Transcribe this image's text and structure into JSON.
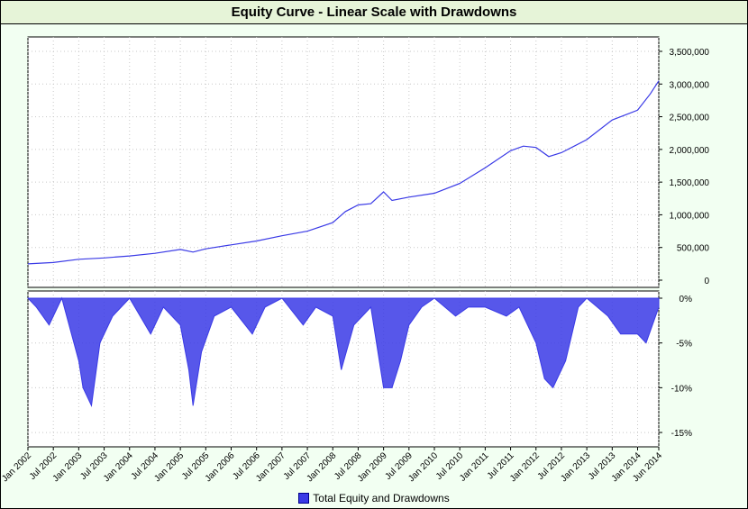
{
  "colors": {
    "series": "#3a3ae6",
    "background": "#f2fff2",
    "plot_background": "#ffffff",
    "title_background": "#e6f4d8",
    "grid": "#c8c8c8"
  },
  "chart_data": [
    {
      "type": "line",
      "title": "Equity Curve - Linear Scale with Drawdowns",
      "ylabel": "",
      "xlabel": "",
      "xlim": [
        "2002-01",
        "2014-06"
      ],
      "ylim": [
        0,
        3500000
      ],
      "grid": true,
      "y_ticks": [
        0,
        500000,
        1000000,
        1500000,
        2000000,
        2500000,
        3000000,
        3500000
      ],
      "y_tick_labels": [
        "0",
        "500,000",
        "1,000,000",
        "1,500,000",
        "2,000,000",
        "2,500,000",
        "3,000,000",
        "3,500,000"
      ],
      "series": [
        {
          "name": "Total Equity",
          "x": [
            "2002-01",
            "2002-07",
            "2003-01",
            "2003-07",
            "2004-01",
            "2004-07",
            "2005-01",
            "2005-04",
            "2005-07",
            "2006-01",
            "2006-07",
            "2007-01",
            "2007-07",
            "2008-01",
            "2008-04",
            "2008-07",
            "2008-10",
            "2009-01",
            "2009-03",
            "2009-07",
            "2010-01",
            "2010-07",
            "2011-01",
            "2011-07",
            "2011-10",
            "2012-01",
            "2012-04",
            "2012-07",
            "2013-01",
            "2013-07",
            "2014-01",
            "2014-04",
            "2014-06"
          ],
          "y": [
            250000,
            270000,
            320000,
            340000,
            370000,
            410000,
            470000,
            430000,
            480000,
            540000,
            600000,
            680000,
            750000,
            880000,
            1050000,
            1150000,
            1170000,
            1350000,
            1220000,
            1270000,
            1330000,
            1480000,
            1720000,
            1980000,
            2050000,
            2030000,
            1890000,
            1950000,
            2150000,
            2450000,
            2600000,
            2850000,
            3050000
          ]
        }
      ]
    },
    {
      "type": "area",
      "ylim": [
        -16,
        0
      ],
      "y_ticks": [
        0,
        -5,
        -10,
        -15
      ],
      "y_tick_labels": [
        "0%",
        "-5%",
        "-10%",
        "-15%"
      ],
      "x_tick_labels": [
        "Jan 2002",
        "Jul 2002",
        "Jan 2003",
        "Jul 2003",
        "Jan 2004",
        "Jul 2004",
        "Jan 2005",
        "Jul 2005",
        "Jan 2006",
        "Jul 2006",
        "Jan 2007",
        "Jul 2007",
        "Jan 2008",
        "Jul 2008",
        "Jan 2009",
        "Jul 2009",
        "Jan 2010",
        "Jul 2010",
        "Jan 2011",
        "Jul 2011",
        "Jan 2012",
        "Jul 2012",
        "Jan 2013",
        "Jul 2013",
        "Jan 2014",
        "Jun 2014"
      ],
      "series": [
        {
          "name": "Drawdowns",
          "x": [
            "2002-01",
            "2002-03",
            "2002-06",
            "2002-09",
            "2003-01",
            "2003-02",
            "2003-04",
            "2003-06",
            "2003-09",
            "2004-01",
            "2004-06",
            "2004-09",
            "2005-01",
            "2005-03",
            "2005-04",
            "2005-06",
            "2005-09",
            "2006-01",
            "2006-06",
            "2006-09",
            "2007-01",
            "2007-06",
            "2007-09",
            "2008-01",
            "2008-03",
            "2008-06",
            "2008-08",
            "2008-10",
            "2009-01",
            "2009-03",
            "2009-05",
            "2009-07",
            "2009-10",
            "2010-01",
            "2010-06",
            "2010-09",
            "2011-01",
            "2011-06",
            "2011-09",
            "2011-11",
            "2012-01",
            "2012-03",
            "2012-05",
            "2012-08",
            "2012-11",
            "2013-01",
            "2013-06",
            "2013-09",
            "2014-01",
            "2014-03",
            "2014-06"
          ],
          "y": [
            0,
            -1,
            -3,
            0,
            -7,
            -10,
            -12,
            -5,
            -2,
            0,
            -4,
            -1,
            -3,
            -8,
            -12,
            -6,
            -2,
            -1,
            -4,
            -1,
            0,
            -3,
            -1,
            -2,
            -8,
            -3,
            -2,
            -1,
            -10,
            -10,
            -7,
            -3,
            -1,
            0,
            -2,
            -1,
            -1,
            -2,
            -1,
            -3,
            -5,
            -9,
            -10,
            -7,
            -1,
            0,
            -2,
            -4,
            -4,
            -5,
            -1
          ]
        }
      ]
    }
  ],
  "legend": {
    "label": "Total Equity and Drawdowns"
  }
}
